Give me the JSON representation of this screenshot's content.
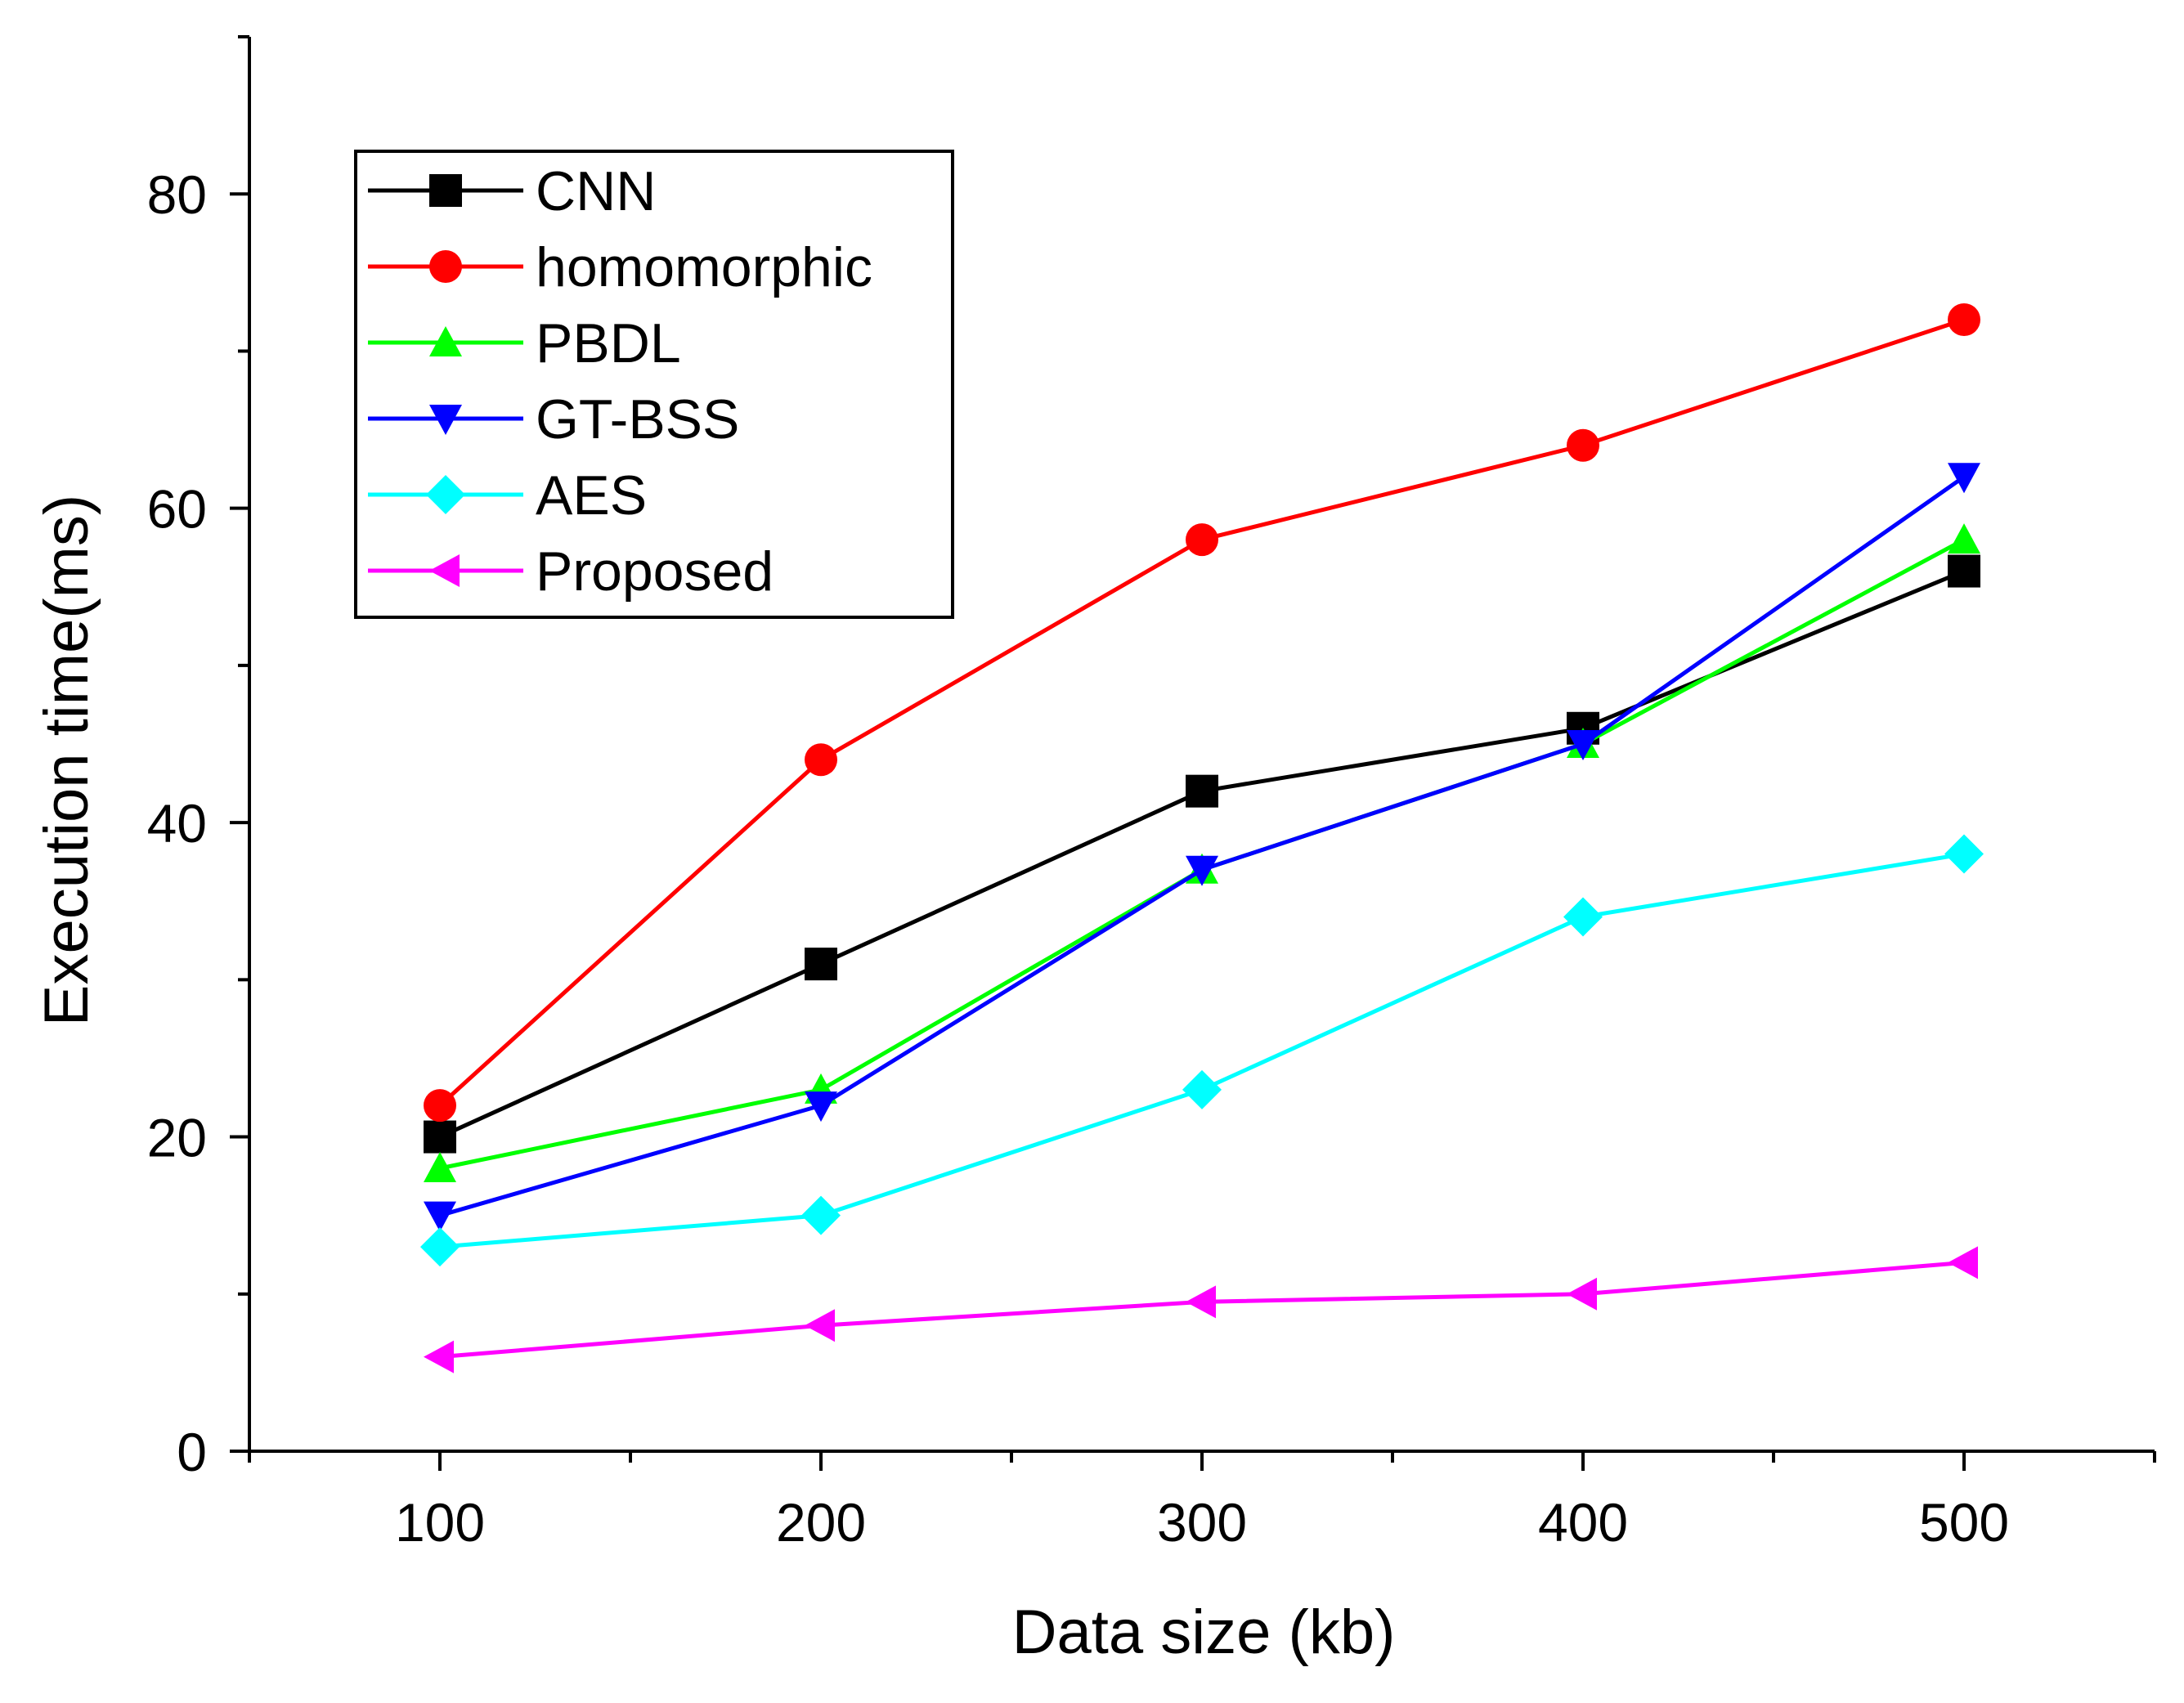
{
  "chart_data": {
    "type": "line",
    "title": "",
    "xlabel": "Data size (kb)",
    "ylabel": "Execution time(ms)",
    "xlim": [
      50,
      550
    ],
    "ylim": [
      0,
      90
    ],
    "xticks": [
      100,
      200,
      300,
      400,
      500
    ],
    "yticks": [
      0,
      20,
      40,
      60,
      80
    ],
    "x": [
      100,
      200,
      300,
      400,
      500
    ],
    "grid": false,
    "legend_position": "top-left",
    "series": [
      {
        "name": "CNN",
        "color": "#000000",
        "marker": "square",
        "values": [
          20,
          31,
          42,
          46,
          56
        ]
      },
      {
        "name": "homomorphic",
        "color": "#ff0000",
        "marker": "circle",
        "values": [
          22,
          44,
          58,
          64,
          72
        ]
      },
      {
        "name": "PBDL",
        "color": "#00ff00",
        "marker": "triangle-up",
        "values": [
          18,
          23,
          37,
          45,
          58
        ]
      },
      {
        "name": "GT-BSS",
        "color": "#0000ff",
        "marker": "triangle-down",
        "values": [
          15,
          22,
          37,
          45,
          62
        ]
      },
      {
        "name": "AES",
        "color": "#00ffff",
        "marker": "diamond",
        "values": [
          13,
          15,
          23,
          34,
          38
        ]
      },
      {
        "name": "Proposed",
        "color": "#ff00ff",
        "marker": "triangle-left",
        "values": [
          6,
          8,
          9.5,
          10,
          12
        ]
      }
    ]
  }
}
